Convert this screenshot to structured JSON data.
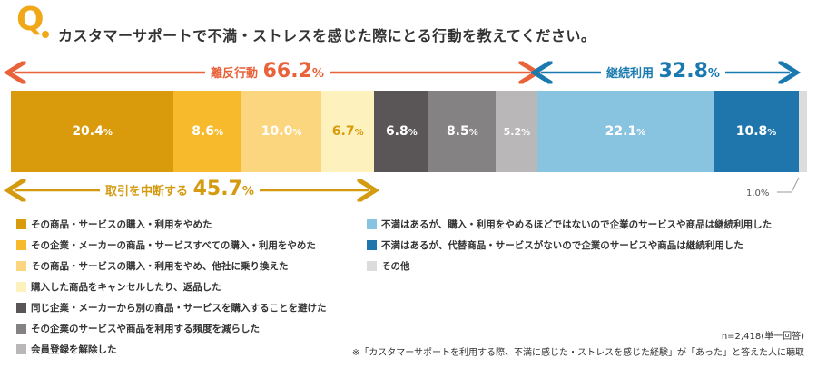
{
  "header": {
    "q_letter": "Q",
    "title": "カスタマーサポートで不満・ストレスを感じた際にとる行動を教えてください。"
  },
  "brackets": {
    "leave": {
      "label": "離反行動",
      "value": "66.2",
      "unit": "%",
      "color": "#e8623a"
    },
    "continue": {
      "label": "継続利用",
      "value": "32.8",
      "unit": "%",
      "color": "#1a7ab0"
    },
    "stop": {
      "label": "取引を中断する",
      "value": "45.7",
      "unit": "%",
      "color": "#d49a10"
    }
  },
  "chart_data": {
    "type": "bar",
    "stacked": true,
    "orientation": "horizontal",
    "series": [
      {
        "name": "その商品・サービスの購入・利用をやめた",
        "value": 20.4,
        "label": "20.4",
        "color": "#d99a0c",
        "text_color": "#ffffff"
      },
      {
        "name": "その企業・メーカーの商品・サービスすべての購入・利用をやめた",
        "value": 8.6,
        "label": "8.6",
        "color": "#f6ba2c",
        "text_color": "#ffffff"
      },
      {
        "name": "その商品・サービスの購入・利用をやめ、他社に乗り換えた",
        "value": 10.0,
        "label": "10.0",
        "color": "#fbd67e",
        "text_color": "#ffffff"
      },
      {
        "name": "購入した商品をキャンセルしたり、返品した",
        "value": 6.7,
        "label": "6.7",
        "color": "#fdf1bd",
        "text_color": "#d99a0c"
      },
      {
        "name": "同じ企業・メーカーから別の商品・サービスを購入することを避けた",
        "value": 6.8,
        "label": "6.8",
        "color": "#5a5657",
        "text_color": "#ffffff"
      },
      {
        "name": "その企業のサービスや商品を利用する頻度を減らした",
        "value": 8.5,
        "label": "8.5",
        "color": "#858284",
        "text_color": "#ffffff"
      },
      {
        "name": "会員登録を解除した",
        "value": 5.2,
        "label": "5.2",
        "color": "#b9b7b8",
        "text_color": "#ffffff"
      },
      {
        "name": "不満はあるが、購入・利用をやめるほどではないので企業のサービスや商品は継続利用した",
        "value": 22.1,
        "label": "22.1",
        "color": "#88c3e0",
        "text_color": "#ffffff"
      },
      {
        "name": "不満はあるが、代替商品・サービスがないので企業のサービスや商品は継続利用した",
        "value": 10.8,
        "label": "10.8",
        "color": "#1e76ad",
        "text_color": "#ffffff"
      },
      {
        "name": "その他",
        "value": 1.0,
        "label": "1.0",
        "color": "#dcdcdc",
        "text_color": "#555555"
      }
    ],
    "unit": "%",
    "total": 100
  },
  "footnotes": {
    "n": "n=2,418(単一回答)",
    "note": "※「カスタマーサポートを利用する際、不満に感じた・ストレスを感じた経験」が「あった」と答えた人に聴取"
  }
}
